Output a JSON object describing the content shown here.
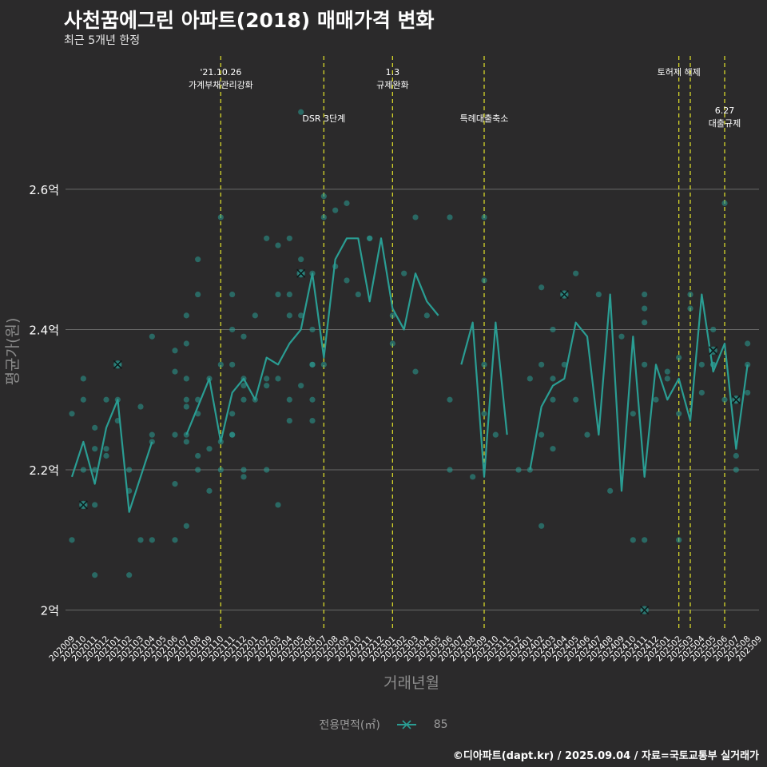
{
  "header": {
    "title": "사천꿈에그린 아파트(2018) 매매가격 변화",
    "subtitle": "최근 5개년 한정"
  },
  "legend": {
    "title": "전용면적(㎡)",
    "series_label": "85"
  },
  "credit": "©디아파트(dapt.kr) / 2025.09.04 / 자료=국토교통부 실거래가",
  "colors": {
    "background": "#2b2a2b",
    "series": "#2a9d93",
    "event_line": "#d6d62a",
    "grid": "#6a6a6a"
  },
  "chart_data": {
    "type": "line",
    "xlabel": "거래년월",
    "ylabel": "평균가(원)",
    "ylim": [
      1.97,
      2.79
    ],
    "y_ticks": [
      {
        "value": 2.0,
        "label": "2억"
      },
      {
        "value": 2.2,
        "label": "2.2억"
      },
      {
        "value": 2.4,
        "label": "2.4억"
      },
      {
        "value": 2.6,
        "label": "2.6억"
      }
    ],
    "grid": "horizontal",
    "legend_position": "bottom",
    "x": [
      "202009",
      "202010",
      "202011",
      "202012",
      "202101",
      "202102",
      "202103",
      "202104",
      "202105",
      "202106",
      "202107",
      "202108",
      "202109",
      "202110",
      "202111",
      "202112",
      "202201",
      "202202",
      "202203",
      "202204",
      "202205",
      "202206",
      "202207",
      "202208",
      "202209",
      "202210",
      "202211",
      "202212",
      "202301",
      "202302",
      "202303",
      "202304",
      "202305",
      "202306",
      "202307",
      "202308",
      "202309",
      "202310",
      "202311",
      "202312",
      "202401",
      "202402",
      "202403",
      "202404",
      "202405",
      "202406",
      "202407",
      "202408",
      "202409",
      "202410",
      "202411",
      "202412",
      "202501",
      "202502",
      "202503",
      "202504",
      "202505",
      "202506",
      "202507",
      "202508",
      "202509"
    ],
    "series": [
      {
        "name": "85",
        "values": [
          2.19,
          2.24,
          2.18,
          2.26,
          2.3,
          2.14,
          2.19,
          2.24,
          null,
          null,
          2.25,
          2.29,
          2.33,
          2.24,
          2.31,
          2.33,
          2.3,
          2.36,
          2.35,
          2.38,
          2.4,
          2.48,
          2.36,
          2.5,
          2.53,
          2.53,
          2.44,
          2.53,
          2.43,
          2.4,
          2.48,
          2.44,
          2.42,
          null,
          2.35,
          2.41,
          2.19,
          2.41,
          2.25,
          null,
          2.2,
          2.29,
          2.32,
          2.33,
          2.41,
          2.39,
          2.25,
          2.45,
          2.17,
          2.39,
          2.19,
          2.35,
          2.3,
          2.33,
          2.27,
          2.45,
          2.34,
          2.38,
          2.23,
          2.35,
          null
        ]
      }
    ],
    "scatter_points": [
      [
        "202009",
        2.28
      ],
      [
        "202009",
        2.1
      ],
      [
        "202010",
        2.33
      ],
      [
        "202010",
        2.3
      ],
      [
        "202010",
        2.2
      ],
      [
        "202010",
        2.15
      ],
      [
        "202011",
        2.26
      ],
      [
        "202011",
        2.05
      ],
      [
        "202011",
        2.2
      ],
      [
        "202011",
        2.15
      ],
      [
        "202011",
        2.23
      ],
      [
        "202012",
        2.3
      ],
      [
        "202012",
        2.23
      ],
      [
        "202012",
        2.22
      ],
      [
        "202101",
        2.35
      ],
      [
        "202101",
        2.27
      ],
      [
        "202101",
        2.3
      ],
      [
        "202102",
        2.17
      ],
      [
        "202102",
        2.05
      ],
      [
        "202102",
        2.2
      ],
      [
        "202103",
        2.29
      ],
      [
        "202103",
        2.1
      ],
      [
        "202104",
        2.39
      ],
      [
        "202104",
        2.1
      ],
      [
        "202104",
        2.24
      ],
      [
        "202104",
        2.25
      ],
      [
        "202106",
        2.37
      ],
      [
        "202106",
        2.34
      ],
      [
        "202106",
        2.18
      ],
      [
        "202106",
        2.1
      ],
      [
        "202106",
        2.25
      ],
      [
        "202107",
        2.42
      ],
      [
        "202107",
        2.38
      ],
      [
        "202107",
        2.33
      ],
      [
        "202107",
        2.3
      ],
      [
        "202107",
        2.29
      ],
      [
        "202107",
        2.24
      ],
      [
        "202107",
        2.25
      ],
      [
        "202107",
        2.12
      ],
      [
        "202108",
        2.5
      ],
      [
        "202108",
        2.45
      ],
      [
        "202108",
        2.3
      ],
      [
        "202108",
        2.28
      ],
      [
        "202108",
        2.22
      ],
      [
        "202108",
        2.2
      ],
      [
        "202109",
        2.33
      ],
      [
        "202109",
        2.23
      ],
      [
        "202109",
        2.17
      ],
      [
        "202110",
        2.56
      ],
      [
        "202110",
        2.35
      ],
      [
        "202110",
        2.24
      ],
      [
        "202110",
        2.2
      ],
      [
        "202111",
        2.45
      ],
      [
        "202111",
        2.4
      ],
      [
        "202111",
        2.35
      ],
      [
        "202111",
        2.28
      ],
      [
        "202111",
        2.25
      ],
      [
        "202111",
        2.25
      ],
      [
        "202112",
        2.39
      ],
      [
        "202112",
        2.33
      ],
      [
        "202112",
        2.32
      ],
      [
        "202112",
        2.3
      ],
      [
        "202112",
        2.2
      ],
      [
        "202112",
        2.19
      ],
      [
        "202201",
        2.42
      ],
      [
        "202201",
        2.3
      ],
      [
        "202202",
        2.53
      ],
      [
        "202202",
        2.33
      ],
      [
        "202202",
        2.32
      ],
      [
        "202202",
        2.2
      ],
      [
        "202203",
        2.52
      ],
      [
        "202203",
        2.45
      ],
      [
        "202203",
        2.33
      ],
      [
        "202203",
        2.15
      ],
      [
        "202204",
        2.53
      ],
      [
        "202204",
        2.45
      ],
      [
        "202204",
        2.42
      ],
      [
        "202204",
        2.3
      ],
      [
        "202204",
        2.27
      ],
      [
        "202205",
        2.5
      ],
      [
        "202205",
        2.48
      ],
      [
        "202205",
        2.42
      ],
      [
        "202205",
        2.32
      ],
      [
        "202205",
        2.71
      ],
      [
        "202206",
        2.48
      ],
      [
        "202206",
        2.4
      ],
      [
        "202206",
        2.35
      ],
      [
        "202206",
        2.35
      ],
      [
        "202206",
        2.3
      ],
      [
        "202206",
        2.27
      ],
      [
        "202207",
        2.59
      ],
      [
        "202207",
        2.56
      ],
      [
        "202207",
        2.35
      ],
      [
        "202208",
        2.57
      ],
      [
        "202208",
        2.49
      ],
      [
        "202209",
        2.58
      ],
      [
        "202209",
        2.47
      ],
      [
        "202210",
        2.45
      ],
      [
        "202211",
        2.53
      ],
      [
        "202211",
        2.53
      ],
      [
        "202301",
        2.42
      ],
      [
        "202301",
        2.38
      ],
      [
        "202302",
        2.48
      ],
      [
        "202303",
        2.56
      ],
      [
        "202303",
        2.34
      ],
      [
        "202304",
        2.42
      ],
      [
        "202306",
        2.56
      ],
      [
        "202306",
        2.3
      ],
      [
        "202306",
        2.2
      ],
      [
        "202308",
        2.19
      ],
      [
        "202309",
        2.56
      ],
      [
        "202309",
        2.47
      ],
      [
        "202309",
        2.35
      ],
      [
        "202309",
        2.28
      ],
      [
        "202310",
        2.25
      ],
      [
        "202312",
        2.2
      ],
      [
        "202401",
        2.33
      ],
      [
        "202401",
        2.2
      ],
      [
        "202402",
        2.46
      ],
      [
        "202402",
        2.35
      ],
      [
        "202402",
        2.25
      ],
      [
        "202402",
        2.12
      ],
      [
        "202403",
        2.4
      ],
      [
        "202403",
        2.33
      ],
      [
        "202403",
        2.3
      ],
      [
        "202403",
        2.23
      ],
      [
        "202404",
        2.45
      ],
      [
        "202404",
        2.35
      ],
      [
        "202405",
        2.48
      ],
      [
        "202405",
        2.3
      ],
      [
        "202406",
        2.25
      ],
      [
        "202407",
        2.45
      ],
      [
        "202408",
        2.17
      ],
      [
        "202409",
        2.39
      ],
      [
        "202410",
        2.28
      ],
      [
        "202410",
        2.1
      ],
      [
        "202411",
        2.45
      ],
      [
        "202411",
        2.43
      ],
      [
        "202411",
        2.41
      ],
      [
        "202411",
        2.35
      ],
      [
        "202411",
        2.1
      ],
      [
        "202412",
        2.3
      ],
      [
        "202501",
        2.34
      ],
      [
        "202501",
        2.33
      ],
      [
        "202502",
        2.36
      ],
      [
        "202502",
        2.28
      ],
      [
        "202502",
        2.1
      ],
      [
        "202503",
        2.45
      ],
      [
        "202503",
        2.43
      ],
      [
        "202504",
        2.35
      ],
      [
        "202504",
        2.31
      ],
      [
        "202505",
        2.4
      ],
      [
        "202505",
        2.35
      ],
      [
        "202505",
        2.35
      ],
      [
        "202506",
        2.58
      ],
      [
        "202506",
        2.3
      ],
      [
        "202507",
        2.3
      ],
      [
        "202507",
        2.22
      ],
      [
        "202507",
        2.2
      ],
      [
        "202508",
        2.38
      ],
      [
        "202508",
        2.35
      ],
      [
        "202508",
        2.31
      ]
    ],
    "highlight_points": [
      [
        "202010",
        2.15
      ],
      [
        "202101",
        2.35
      ],
      [
        "202205",
        2.48
      ],
      [
        "202404",
        2.45
      ],
      [
        "202411",
        2.0
      ],
      [
        "202505",
        2.37
      ],
      [
        "202507",
        2.3
      ]
    ],
    "events": [
      {
        "x": "202110",
        "lines": [
          "'21.10.26",
          "가계부채관리강화"
        ],
        "row": 1
      },
      {
        "x": "202207",
        "lines": [
          "DSR 3단계"
        ],
        "row": 2
      },
      {
        "x": "202301",
        "lines": [
          "1.3",
          "규제완화"
        ],
        "row": 1
      },
      {
        "x": "202309",
        "lines": [
          "특례대출축소"
        ],
        "row": 2
      },
      {
        "x": "202502",
        "lines": [
          "토허제 해제"
        ],
        "row": 1
      },
      {
        "x": "202503",
        "lines": [],
        "row": 1
      },
      {
        "x": "202506",
        "lines": [
          "6.27",
          "대출규제"
        ],
        "row": 3
      }
    ]
  }
}
